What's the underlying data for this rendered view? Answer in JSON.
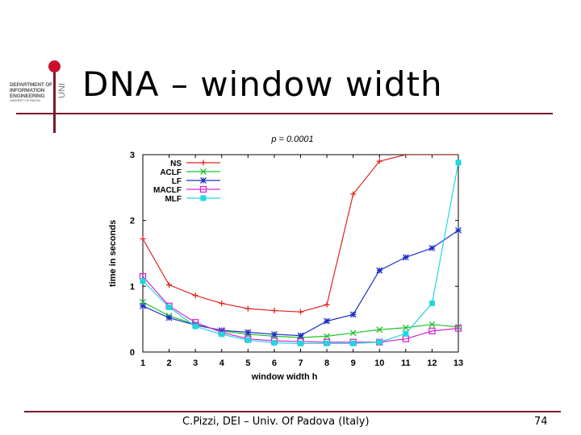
{
  "slide": {
    "title": "DNA – window width",
    "footer_left": "C.Pizzi, DEI – Univ. Of Padova (Italy)",
    "page_number": "74",
    "accent_color": "#7a1a2a"
  },
  "logo": {
    "line1": "DEPARTMENT OF",
    "line2": "INFORMATION",
    "line3": "ENGINEERING",
    "line4": "UNIVERSITY OF PADOVA",
    "vertical": "UNI"
  },
  "chart_data": {
    "type": "line",
    "title": "p = 0.0001",
    "xlabel": "window width h",
    "ylabel": "time in seconds",
    "x": [
      1,
      2,
      3,
      4,
      5,
      6,
      7,
      8,
      9,
      10,
      11,
      12,
      13
    ],
    "xticks": [
      1,
      2,
      3,
      4,
      5,
      6,
      7,
      8,
      9,
      10,
      11,
      12,
      13
    ],
    "yticks": [
      0,
      1,
      2,
      3
    ],
    "xlim": [
      1,
      13
    ],
    "ylim": [
      0,
      3
    ],
    "legend_position": "top-left",
    "series": [
      {
        "name": "NS",
        "color": "#e0241c",
        "marker": "+",
        "values": [
          1.72,
          1.02,
          0.86,
          0.74,
          0.66,
          0.63,
          0.61,
          0.72,
          2.4,
          2.9,
          3.02,
          3.05,
          3.05
        ]
      },
      {
        "name": "ACLF",
        "color": "#22c02a",
        "marker": "x",
        "values": [
          0.76,
          0.55,
          0.42,
          0.32,
          0.27,
          0.24,
          0.22,
          0.24,
          0.29,
          0.34,
          0.37,
          0.42,
          0.38
        ]
      },
      {
        "name": "LF",
        "color": "#1f30c8",
        "marker": "*",
        "values": [
          0.7,
          0.52,
          0.41,
          0.33,
          0.3,
          0.27,
          0.25,
          0.47,
          0.57,
          1.24,
          1.44,
          1.58,
          1.85
        ]
      },
      {
        "name": "MACLF",
        "color": "#d22ad2",
        "marker": "square-open",
        "values": [
          1.15,
          0.7,
          0.45,
          0.3,
          0.2,
          0.17,
          0.16,
          0.15,
          0.15,
          0.15,
          0.2,
          0.32,
          0.36
        ]
      },
      {
        "name": "MLF",
        "color": "#22d6e0",
        "marker": "square",
        "values": [
          1.08,
          0.68,
          0.39,
          0.27,
          0.18,
          0.14,
          0.13,
          0.13,
          0.13,
          0.15,
          0.28,
          0.74,
          2.88
        ]
      }
    ]
  }
}
